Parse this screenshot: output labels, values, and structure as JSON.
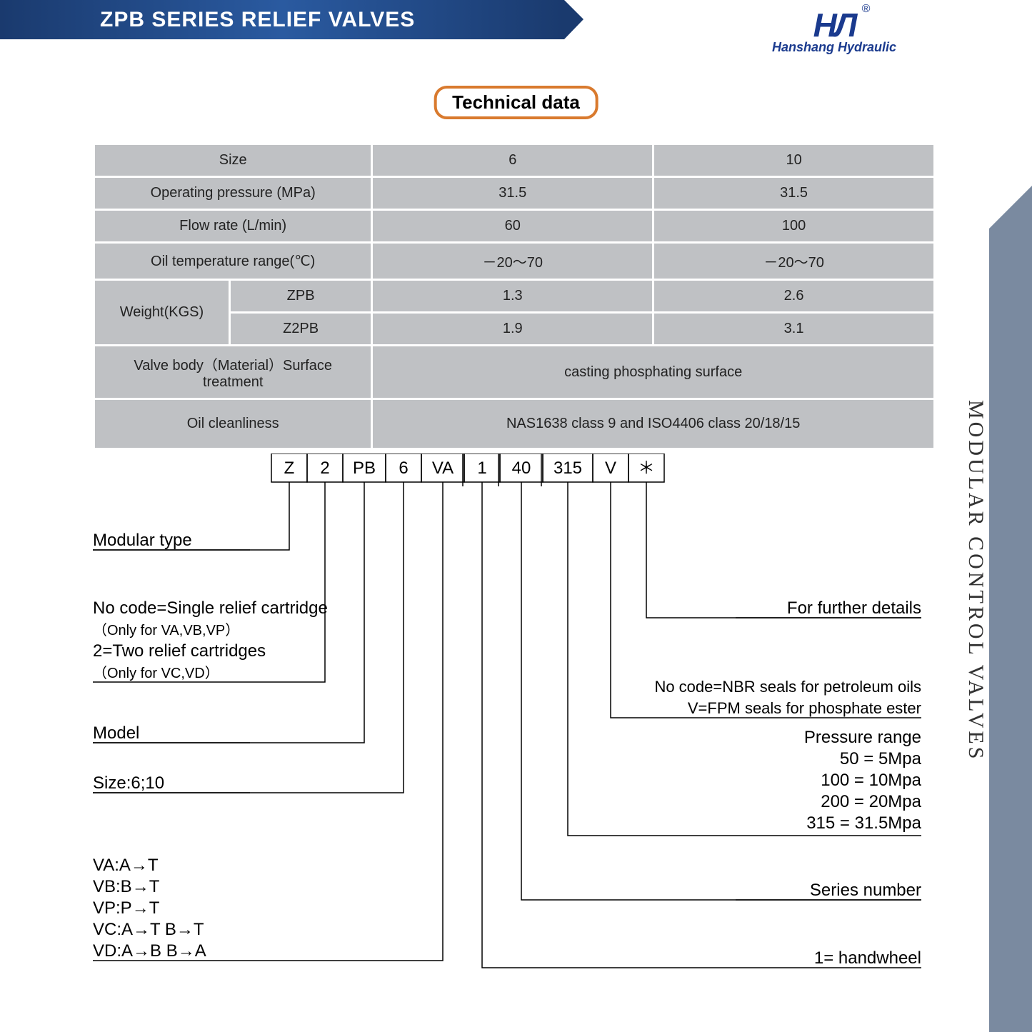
{
  "header": {
    "title": "ZPB SERIES RELIEF VALVES"
  },
  "logo": {
    "mark": "HЛ",
    "reg": "®",
    "sub": "Hanshang Hydraulic"
  },
  "badge": "Technical data",
  "side": "MODULAR CONTROL VALVES",
  "table": {
    "rows": [
      {
        "label": "Size",
        "c1": "6",
        "c2": "10"
      },
      {
        "label": "Operating pressure (MPa)",
        "c1": "31.5",
        "c2": "31.5"
      },
      {
        "label": "Flow rate (L/min)",
        "c1": "60",
        "c2": "100"
      },
      {
        "label": "Oil temperature range(℃)",
        "c1": "－20～70",
        "c2": "－20～70"
      }
    ],
    "weight": {
      "label": "Weight(KGS)",
      "r1": {
        "sub": "ZPB",
        "c1": "1.3",
        "c2": "2.6"
      },
      "r2": {
        "sub": "Z2PB",
        "c1": "1.9",
        "c2": "3.1"
      }
    },
    "body": {
      "label": "Valve body（Material）Surface treatment",
      "val": "casting phosphating surface"
    },
    "clean": {
      "label": "Oil cleanliness",
      "val": "NAS1638 class 9 and ISO4406 class 20/18/15"
    }
  },
  "code": {
    "boxes": [
      "Z",
      "2",
      "PB",
      "6",
      "VA",
      "1",
      "40",
      "315",
      "V",
      "＊"
    ],
    "left": {
      "l1": "Modular type",
      "l2a": "No code=Single relief cartridge",
      "l2b": "（Only for VA,VB,VP）",
      "l2c": "2=Two relief cartridges",
      "l2d": "（Only for VC,VD）",
      "l3": "Model",
      "l4": "Size:6;10",
      "l5a": "VA:A→T",
      "l5b": "VB:B→T",
      "l5c": "VP:P→T",
      "l5d": "VC:A→T B→T",
      "l5e": "VD:A→B B→A"
    },
    "right": {
      "r1": "For further details",
      "r2a": "No code=NBR seals for petroleum oils",
      "r2b": "V=FPM seals for phosphate ester",
      "r3": "Pressure range",
      "r3a": "50 = 5Mpa",
      "r3b": "100 = 10Mpa",
      "r3c": "200 = 20Mpa",
      "r3d": "315 = 31.5Mpa",
      "r4": "Series number",
      "r5": "1= handwheel"
    }
  },
  "style": {
    "boxStroke": "#000000",
    "lineStroke": "#000000",
    "textColor": "#000000",
    "fontMain": 24,
    "fontSub": 20
  }
}
